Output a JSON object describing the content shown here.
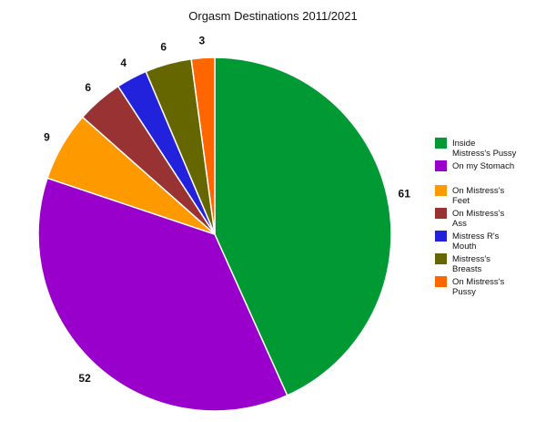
{
  "chart_data": {
    "type": "pie",
    "title": "Orgasm Destinations 2011/2021",
    "legend_position": "right",
    "slices": [
      {
        "label": "Inside Mistress's Pussy",
        "value": 61,
        "color": "#009933"
      },
      {
        "label": "On my Stomach",
        "value": 52,
        "color": "#9900CC"
      },
      {
        "label": "On Mistress's Feet",
        "value": 9,
        "color": "#FF9900"
      },
      {
        "label": "On Mistress's Ass",
        "value": 6,
        "color": "#993333"
      },
      {
        "label": "Mistress R's Mouth",
        "value": 4,
        "color": "#2222DD"
      },
      {
        "label": "Mistress's Breasts",
        "value": 6,
        "color": "#666600"
      },
      {
        "label": "On Mistress's Pussy",
        "value": 3,
        "color": "#FF6600"
      }
    ]
  }
}
